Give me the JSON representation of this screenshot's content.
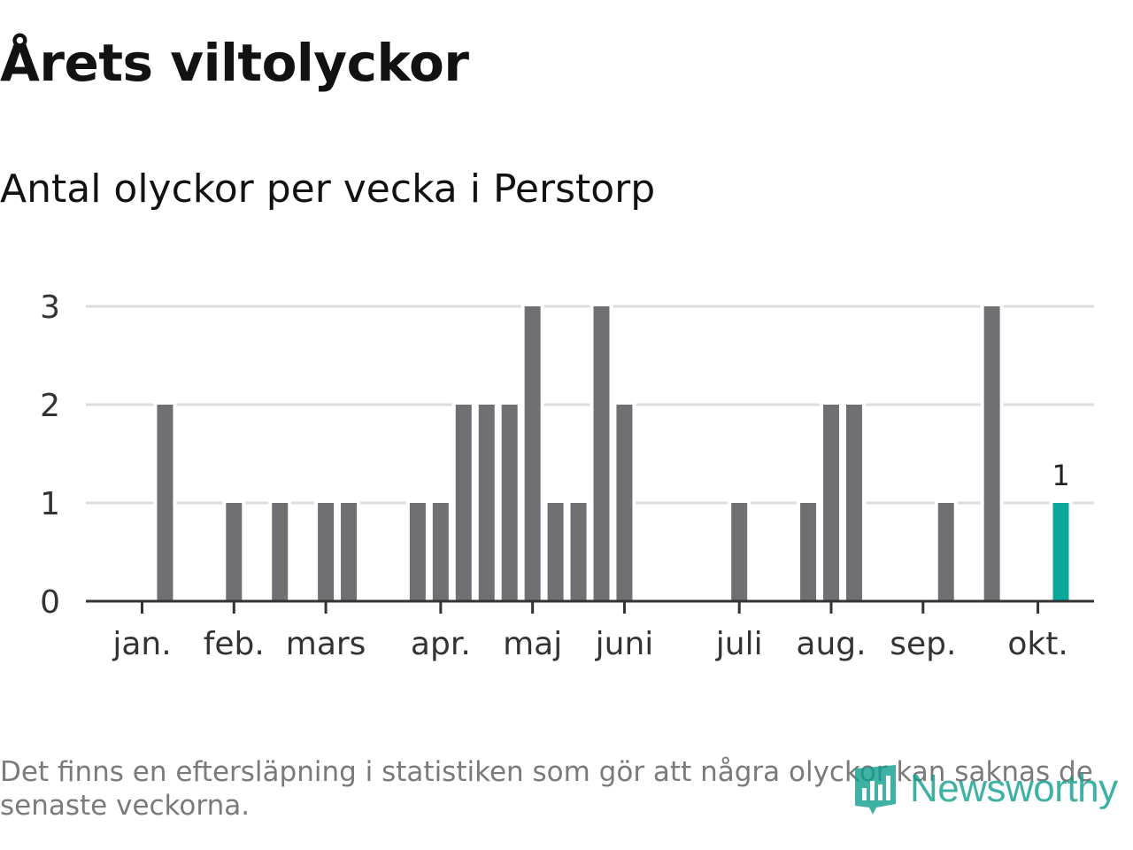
{
  "title": "Årets viltolyckor",
  "subtitle": "Antal olyckor per vecka i Perstorp",
  "footnote": "Det finns en eftersläpning i statistiken som gör att några olyckor kan saknas de senaste veckorna.",
  "logo": {
    "text": "Newsworthy",
    "icon": "newsworthy-logo-icon"
  },
  "colors": {
    "bar": "#707074",
    "highlight": "#0aa89a",
    "grid": "#dddddd",
    "axis": "#333333",
    "logo": "#109e8e"
  },
  "chart_data": {
    "type": "bar",
    "x_unit": "week",
    "x": [
      2,
      5,
      7,
      9,
      10,
      13,
      14,
      15,
      16,
      17,
      18,
      19,
      20,
      21,
      22,
      27,
      30,
      31,
      32,
      36,
      38,
      41
    ],
    "values": [
      2,
      1,
      1,
      1,
      1,
      1,
      1,
      2,
      2,
      2,
      3,
      1,
      1,
      3,
      2,
      1,
      1,
      2,
      2,
      1,
      3,
      1
    ],
    "highlight_index": 21,
    "highlight_label": "1",
    "month_ticks": [
      {
        "label": "jan.",
        "week": 1
      },
      {
        "label": "feb.",
        "week": 5
      },
      {
        "label": "mars",
        "week": 9
      },
      {
        "label": "apr.",
        "week": 14
      },
      {
        "label": "maj",
        "week": 18
      },
      {
        "label": "juni",
        "week": 22
      },
      {
        "label": "juli",
        "week": 27
      },
      {
        "label": "aug.",
        "week": 31
      },
      {
        "label": "sep.",
        "week": 35
      },
      {
        "label": "okt.",
        "week": 40
      }
    ],
    "y_ticks": [
      "0",
      "1",
      "2",
      "3"
    ],
    "ylim": [
      0,
      3
    ],
    "grid": true,
    "legend": "none"
  }
}
